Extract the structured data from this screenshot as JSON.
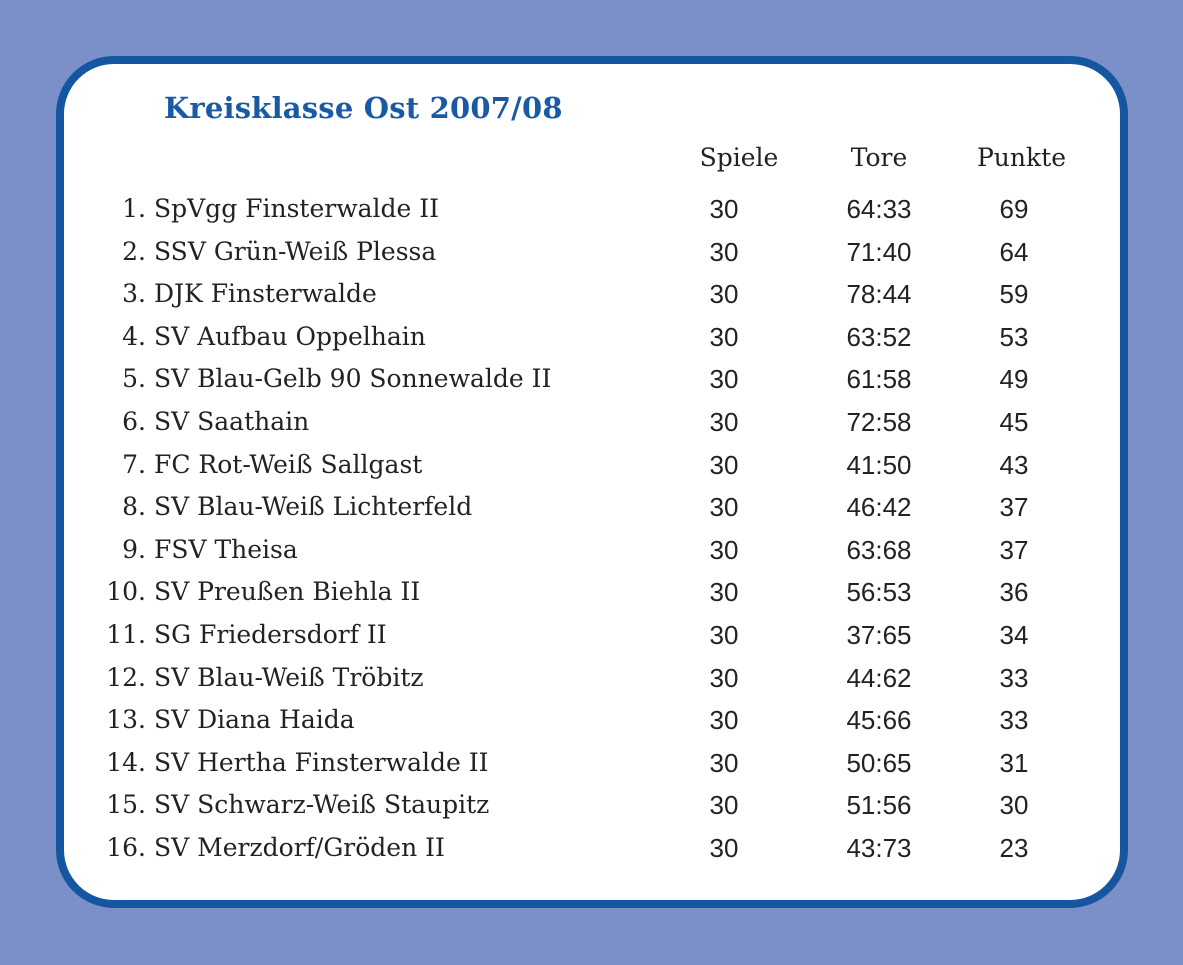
{
  "title": "Kreisklasse Ost 2007/08",
  "colors": {
    "background": "#7b90c8",
    "border": "#1556a0",
    "title": "#1a5aa5",
    "card": "#ffffff",
    "text": "#222222"
  },
  "columns": {
    "games": "Spiele",
    "goals": "Tore",
    "points": "Punkte"
  },
  "rows": [
    {
      "rank": "1.",
      "team": "SpVgg Finsterwalde II",
      "games": "30",
      "goals": "64:33",
      "points": "69"
    },
    {
      "rank": "2.",
      "team": "SSV Grün-Weiß Plessa",
      "games": "30",
      "goals": "71:40",
      "points": "64"
    },
    {
      "rank": "3.",
      "team": "DJK Finsterwalde",
      "games": "30",
      "goals": "78:44",
      "points": "59"
    },
    {
      "rank": "4.",
      "team": "SV Aufbau Oppelhain",
      "games": "30",
      "goals": "63:52",
      "points": "53"
    },
    {
      "rank": "5.",
      "team": "SV Blau-Gelb 90 Sonnewalde II",
      "games": "30",
      "goals": "61:58",
      "points": "49"
    },
    {
      "rank": "6.",
      "team": "SV Saathain",
      "games": "30",
      "goals": "72:58",
      "points": "45"
    },
    {
      "rank": "7.",
      "team": "FC Rot-Weiß Sallgast",
      "games": "30",
      "goals": "41:50",
      "points": "43"
    },
    {
      "rank": "8.",
      "team": "SV Blau-Weiß Lichterfeld",
      "games": "30",
      "goals": "46:42",
      "points": "37"
    },
    {
      "rank": "9.",
      "team": "FSV Theisa",
      "games": "30",
      "goals": "63:68",
      "points": "37"
    },
    {
      "rank": "10.",
      "team": "SV Preußen Biehla II",
      "games": "30",
      "goals": "56:53",
      "points": "36"
    },
    {
      "rank": "11.",
      "team": "SG Friedersdorf II",
      "games": "30",
      "goals": "37:65",
      "points": "34"
    },
    {
      "rank": "12.",
      "team": "SV Blau-Weiß Tröbitz",
      "games": "30",
      "goals": "44:62",
      "points": "33"
    },
    {
      "rank": "13.",
      "team": "SV Diana Haida",
      "games": "30",
      "goals": "45:66",
      "points": "33"
    },
    {
      "rank": "14.",
      "team": "SV Hertha Finsterwalde II",
      "games": "30",
      "goals": "50:65",
      "points": "31"
    },
    {
      "rank": "15.",
      "team": "SV Schwarz-Weiß Staupitz",
      "games": "30",
      "goals": "51:56",
      "points": "30"
    },
    {
      "rank": "16.",
      "team": "SV Merzdorf/Gröden II",
      "games": "30",
      "goals": "43:73",
      "points": "23"
    }
  ]
}
